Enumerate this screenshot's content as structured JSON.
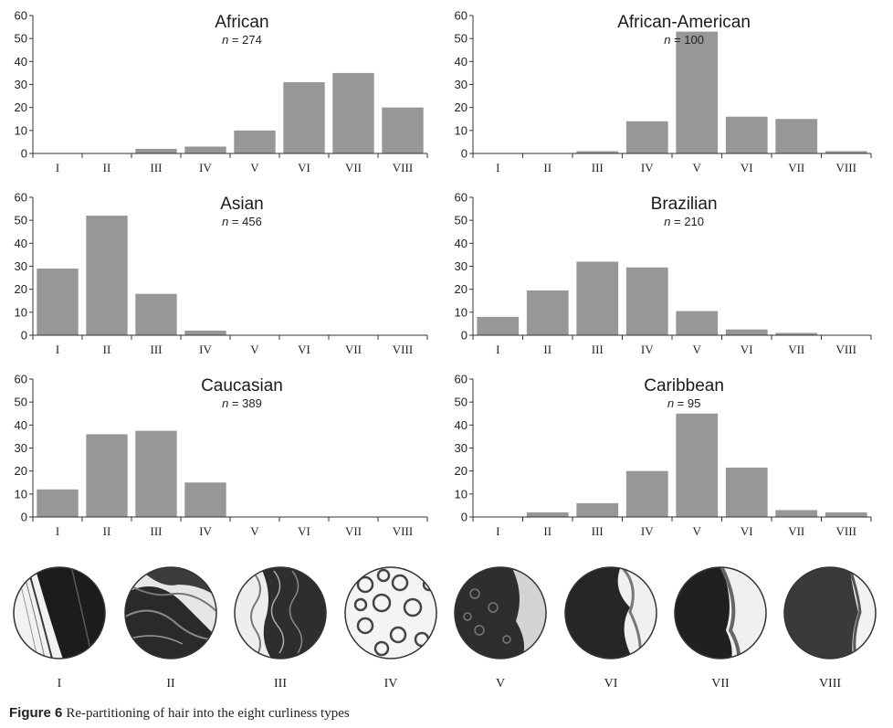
{
  "chart_data": [
    {
      "type": "bar",
      "title": "African",
      "n_label": "n",
      "n_value": "= 274",
      "categories": [
        "I",
        "II",
        "III",
        "IV",
        "V",
        "VI",
        "VII",
        "VIII"
      ],
      "values": [
        0,
        0,
        2,
        3,
        10,
        31,
        35,
        20
      ],
      "ylim": [
        0,
        60
      ],
      "yticks": [
        "0",
        "10",
        "20",
        "30",
        "40",
        "50",
        "60"
      ],
      "bar_color": "#969799"
    },
    {
      "type": "bar",
      "title": "African-American",
      "n_label": "n",
      "n_value": "= 100",
      "categories": [
        "I",
        "II",
        "III",
        "IV",
        "V",
        "VI",
        "VII",
        "VIII"
      ],
      "values": [
        0,
        0,
        1,
        14,
        53,
        16,
        15,
        1
      ],
      "ylim": [
        0,
        60
      ],
      "yticks": [
        "0",
        "10",
        "20",
        "30",
        "40",
        "50",
        "60"
      ],
      "bar_color": "#969799"
    },
    {
      "type": "bar",
      "title": "Asian",
      "n_label": "n",
      "n_value": "= 456",
      "categories": [
        "I",
        "II",
        "III",
        "IV",
        "V",
        "VI",
        "VII",
        "VIII"
      ],
      "values": [
        29,
        52,
        18,
        2,
        0,
        0,
        0,
        0
      ],
      "ylim": [
        0,
        60
      ],
      "yticks": [
        "0",
        "10",
        "20",
        "30",
        "40",
        "50",
        "60"
      ],
      "bar_color": "#969799"
    },
    {
      "type": "bar",
      "title": "Brazilian",
      "n_label": "n",
      "n_value": "= 210",
      "categories": [
        "I",
        "II",
        "III",
        "IV",
        "V",
        "VI",
        "VII",
        "VIII"
      ],
      "values": [
        8,
        19.5,
        32,
        29.5,
        10.5,
        2.5,
        1,
        0
      ],
      "ylim": [
        0,
        60
      ],
      "yticks": [
        "0",
        "10",
        "20",
        "30",
        "40",
        "50",
        "60"
      ],
      "bar_color": "#969799"
    },
    {
      "type": "bar",
      "title": "Caucasian",
      "n_label": "n",
      "n_value": "= 389",
      "categories": [
        "I",
        "II",
        "III",
        "IV",
        "V",
        "VI",
        "VII",
        "VIII"
      ],
      "values": [
        12,
        36,
        37.5,
        15,
        0,
        0,
        0,
        0
      ],
      "ylim": [
        0,
        60
      ],
      "yticks": [
        "0",
        "10",
        "20",
        "30",
        "40",
        "50",
        "60"
      ],
      "bar_color": "#969799"
    },
    {
      "type": "bar",
      "title": "Caribbean",
      "n_label": "n",
      "n_value": "= 95",
      "categories": [
        "I",
        "II",
        "III",
        "IV",
        "V",
        "VI",
        "VII",
        "VIII"
      ],
      "values": [
        0,
        2,
        6,
        20,
        45,
        21.5,
        3,
        2
      ],
      "ylim": [
        0,
        60
      ],
      "yticks": [
        "0",
        "10",
        "20",
        "30",
        "40",
        "50",
        "60"
      ],
      "bar_color": "#969799"
    }
  ],
  "hair_types": [
    "I",
    "II",
    "III",
    "IV",
    "V",
    "VI",
    "VII",
    "VIII"
  ],
  "caption": {
    "label": "Figure 6",
    "text": "Re-partitioning of hair into the eight curliness types"
  }
}
